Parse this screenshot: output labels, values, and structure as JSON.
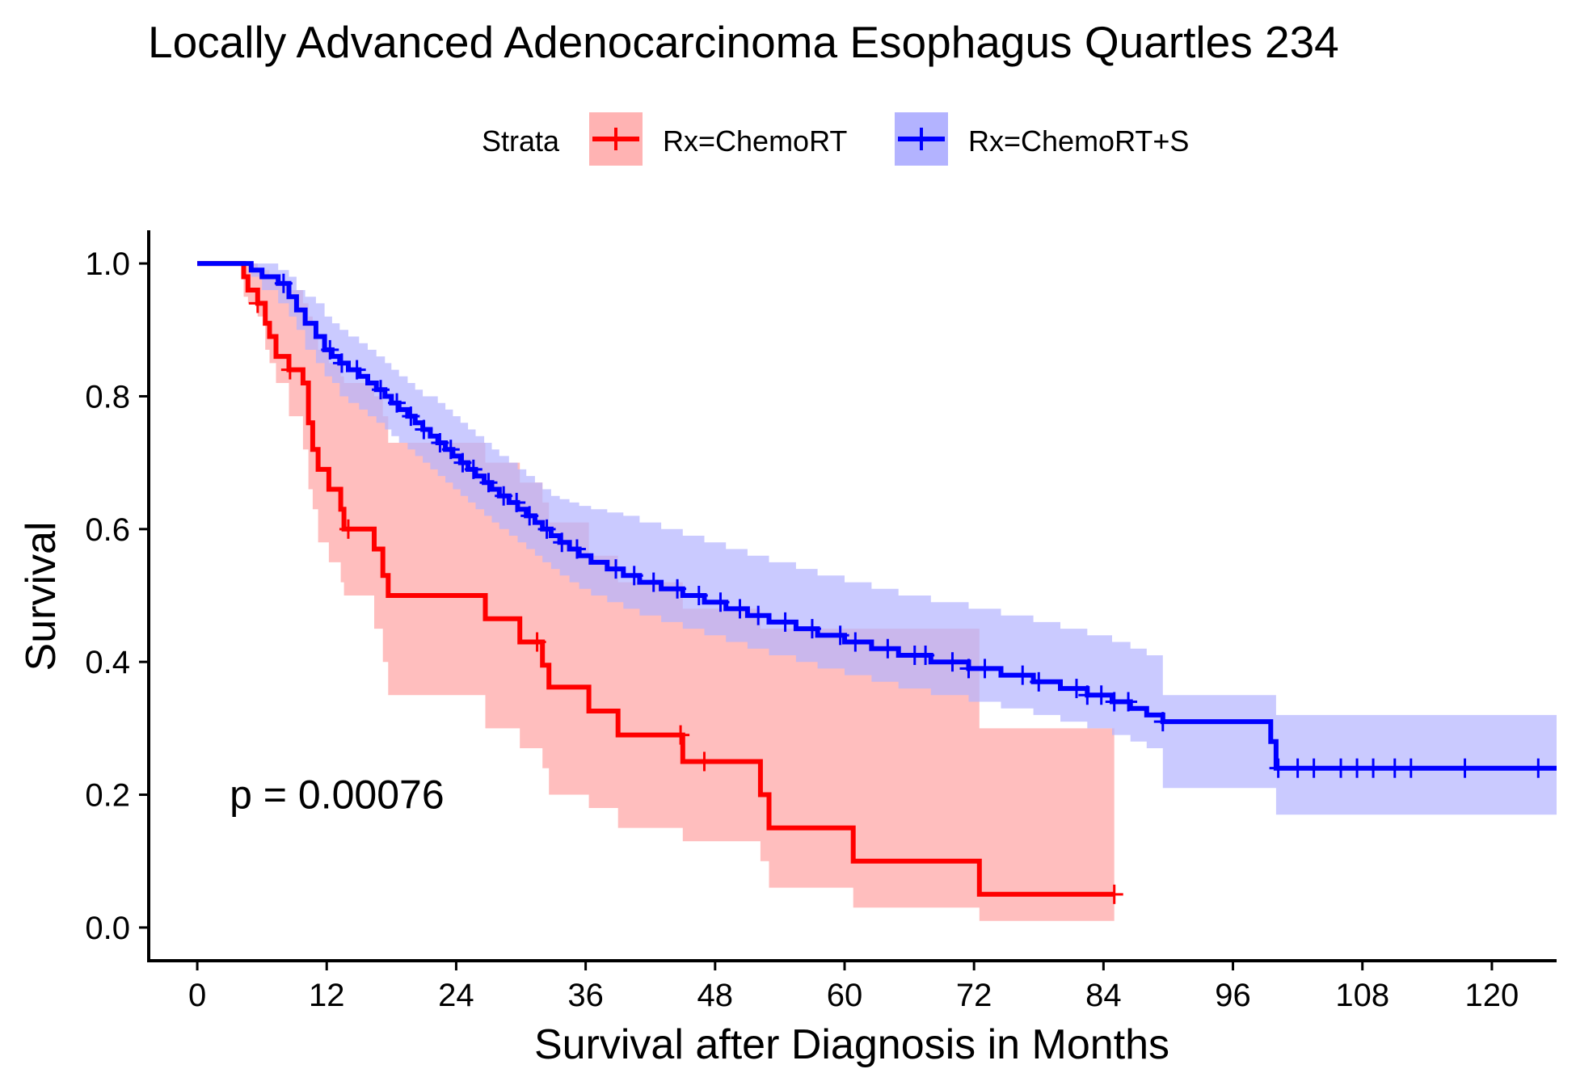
{
  "chart_data": {
    "type": "line",
    "chart_kind": "kaplan-meier survival curve",
    "title": "Locally Advanced Adenocarcinoma Esophagus Quartles 234",
    "xlabel": "Survival after Diagnosis in Months",
    "ylabel": "Survival",
    "xlim": [
      -4.5,
      126
    ],
    "ylim": [
      -0.05,
      1.05
    ],
    "x_ticks": [
      "0",
      "12",
      "24",
      "36",
      "48",
      "60",
      "72",
      "84",
      "96",
      "108",
      "120"
    ],
    "y_ticks": [
      "0.0",
      "0.2",
      "0.4",
      "0.6",
      "0.8",
      "1.0"
    ],
    "grid": false,
    "legend": {
      "title": "Strata",
      "placement": "top",
      "entries": [
        "Rx=ChemoRT",
        "Rx=ChemoRT+S"
      ]
    },
    "annotation": {
      "text": "p = 0.00076",
      "x": 3,
      "y": 0.2
    },
    "series": [
      {
        "name": "Rx=ChemoRT",
        "color": "#ff0000",
        "band_color": "#ffb3b3",
        "steps": [
          [
            0,
            1.0
          ],
          [
            4.3,
            0.98
          ],
          [
            4.7,
            0.96
          ],
          [
            5.6,
            0.94
          ],
          [
            6.3,
            0.91
          ],
          [
            6.7,
            0.89
          ],
          [
            7.3,
            0.86
          ],
          [
            8.5,
            0.84
          ],
          [
            9.8,
            0.82
          ],
          [
            10.3,
            0.76
          ],
          [
            10.7,
            0.72
          ],
          [
            11.2,
            0.69
          ],
          [
            12.2,
            0.66
          ],
          [
            13.3,
            0.63
          ],
          [
            13.6,
            0.6
          ],
          [
            16.4,
            0.57
          ],
          [
            17.2,
            0.53
          ],
          [
            17.7,
            0.5
          ],
          [
            26.7,
            0.465
          ],
          [
            29.9,
            0.43
          ],
          [
            32.0,
            0.395
          ],
          [
            32.6,
            0.362
          ],
          [
            36.3,
            0.326
          ],
          [
            39.0,
            0.29
          ],
          [
            45.0,
            0.25
          ],
          [
            52.2,
            0.2
          ],
          [
            53.0,
            0.15
          ],
          [
            60.8,
            0.1
          ],
          [
            72.5,
            0.05
          ],
          [
            85.0,
            0.05
          ]
        ],
        "censor_times": [
          5.6,
          8.6,
          14.0,
          31.5,
          44.8,
          47.0,
          85.0
        ],
        "ci": [
          [
            0,
            1.0,
            1.0
          ],
          [
            4.3,
            1.0,
            0.95
          ],
          [
            4.7,
            1.0,
            0.94
          ],
          [
            5.6,
            0.99,
            0.92
          ],
          [
            6.3,
            0.99,
            0.87
          ],
          [
            6.7,
            0.98,
            0.85
          ],
          [
            7.3,
            0.97,
            0.82
          ],
          [
            8.5,
            0.96,
            0.77
          ],
          [
            9.8,
            0.94,
            0.72
          ],
          [
            10.3,
            0.92,
            0.66
          ],
          [
            10.7,
            0.89,
            0.63
          ],
          [
            11.2,
            0.87,
            0.58
          ],
          [
            12.2,
            0.85,
            0.55
          ],
          [
            13.3,
            0.83,
            0.52
          ],
          [
            13.6,
            0.82,
            0.5
          ],
          [
            16.4,
            0.8,
            0.45
          ],
          [
            17.2,
            0.77,
            0.4
          ],
          [
            17.7,
            0.73,
            0.35
          ],
          [
            26.7,
            0.7,
            0.3
          ],
          [
            29.9,
            0.67,
            0.27
          ],
          [
            32.0,
            0.64,
            0.24
          ],
          [
            32.6,
            0.61,
            0.2
          ],
          [
            36.3,
            0.56,
            0.18
          ],
          [
            39.0,
            0.52,
            0.15
          ],
          [
            45.0,
            0.48,
            0.13
          ],
          [
            52.2,
            0.45,
            0.1
          ],
          [
            53.0,
            0.45,
            0.06
          ],
          [
            60.8,
            0.45,
            0.03
          ],
          [
            72.5,
            0.3,
            0.01
          ],
          [
            85.0,
            0.3,
            0.01
          ]
        ]
      },
      {
        "name": "Rx=ChemoRT+S",
        "color": "#0000ff",
        "band_color": "#b3b3ff",
        "steps": [
          [
            0,
            1.0
          ],
          [
            5.0,
            0.99
          ],
          [
            6.0,
            0.98
          ],
          [
            7.5,
            0.97
          ],
          [
            8.5,
            0.95
          ],
          [
            9.2,
            0.93
          ],
          [
            10.0,
            0.91
          ],
          [
            11.0,
            0.89
          ],
          [
            11.8,
            0.87
          ],
          [
            12.5,
            0.86
          ],
          [
            13.2,
            0.85
          ],
          [
            14.0,
            0.84
          ],
          [
            15.0,
            0.83
          ],
          [
            15.8,
            0.82
          ],
          [
            16.6,
            0.81
          ],
          [
            17.4,
            0.8
          ],
          [
            18.0,
            0.79
          ],
          [
            18.7,
            0.78
          ],
          [
            19.5,
            0.77
          ],
          [
            20.2,
            0.76
          ],
          [
            20.9,
            0.75
          ],
          [
            21.6,
            0.74
          ],
          [
            22.3,
            0.73
          ],
          [
            23.0,
            0.72
          ],
          [
            23.7,
            0.71
          ],
          [
            24.4,
            0.7
          ],
          [
            25.1,
            0.69
          ],
          [
            25.8,
            0.68
          ],
          [
            26.6,
            0.67
          ],
          [
            27.3,
            0.66
          ],
          [
            28.0,
            0.65
          ],
          [
            28.9,
            0.64
          ],
          [
            29.7,
            0.63
          ],
          [
            30.5,
            0.62
          ],
          [
            31.3,
            0.61
          ],
          [
            32.0,
            0.6
          ],
          [
            32.8,
            0.59
          ],
          [
            33.6,
            0.58
          ],
          [
            34.5,
            0.57
          ],
          [
            35.4,
            0.56
          ],
          [
            36.5,
            0.55
          ],
          [
            38.0,
            0.54
          ],
          [
            39.5,
            0.53
          ],
          [
            41.0,
            0.52
          ],
          [
            43.0,
            0.51
          ],
          [
            45.0,
            0.5
          ],
          [
            47.0,
            0.49
          ],
          [
            49.0,
            0.48
          ],
          [
            51.0,
            0.47
          ],
          [
            53.0,
            0.46
          ],
          [
            55.5,
            0.45
          ],
          [
            57.5,
            0.44
          ],
          [
            60.0,
            0.43
          ],
          [
            62.5,
            0.42
          ],
          [
            65.0,
            0.41
          ],
          [
            68.0,
            0.4
          ],
          [
            71.5,
            0.39
          ],
          [
            74.5,
            0.38
          ],
          [
            77.5,
            0.37
          ],
          [
            80.0,
            0.36
          ],
          [
            82.5,
            0.35
          ],
          [
            84.8,
            0.34
          ],
          [
            86.5,
            0.33
          ],
          [
            88.0,
            0.32
          ],
          [
            89.5,
            0.31
          ],
          [
            99.5,
            0.28
          ],
          [
            100.0,
            0.24
          ],
          [
            126.0,
            0.24
          ]
        ],
        "censor_times": [
          8.0,
          12.3,
          13.4,
          14.8,
          17.0,
          18.5,
          19.8,
          21.0,
          22.5,
          23.5,
          24.6,
          25.6,
          27.0,
          28.4,
          29.6,
          30.8,
          32.4,
          33.8,
          35.2,
          38.8,
          40.5,
          42.3,
          44.5,
          46.5,
          48.5,
          50.3,
          52.0,
          54.5,
          57.0,
          59.6,
          61.0,
          64.0,
          66.5,
          67.5,
          70.0,
          71.5,
          73.0,
          76.5,
          78.0,
          81.5,
          82.5,
          83.8,
          85.0,
          86.3,
          89.5,
          100.2,
          102.0,
          103.5,
          106.0,
          107.5,
          109.0,
          111.0,
          112.5,
          117.5,
          124.3
        ],
        "ci": [
          [
            0,
            1.0,
            1.0
          ],
          [
            5.0,
            1.0,
            0.98
          ],
          [
            6.0,
            1.0,
            0.96
          ],
          [
            7.5,
            0.99,
            0.94
          ],
          [
            8.5,
            0.98,
            0.92
          ],
          [
            9.2,
            0.96,
            0.9
          ],
          [
            10.0,
            0.95,
            0.87
          ],
          [
            11.0,
            0.94,
            0.85
          ],
          [
            11.8,
            0.92,
            0.83
          ],
          [
            12.5,
            0.91,
            0.82
          ],
          [
            13.2,
            0.9,
            0.8
          ],
          [
            14.0,
            0.89,
            0.79
          ],
          [
            15.0,
            0.88,
            0.78
          ],
          [
            15.8,
            0.87,
            0.77
          ],
          [
            16.6,
            0.86,
            0.76
          ],
          [
            17.4,
            0.85,
            0.75
          ],
          [
            18.0,
            0.84,
            0.74
          ],
          [
            18.7,
            0.83,
            0.73
          ],
          [
            19.5,
            0.82,
            0.72
          ],
          [
            20.2,
            0.81,
            0.71
          ],
          [
            20.9,
            0.8,
            0.7
          ],
          [
            21.6,
            0.8,
            0.69
          ],
          [
            22.3,
            0.79,
            0.68
          ],
          [
            23.0,
            0.78,
            0.67
          ],
          [
            23.7,
            0.77,
            0.66
          ],
          [
            24.4,
            0.76,
            0.65
          ],
          [
            25.1,
            0.75,
            0.64
          ],
          [
            25.8,
            0.74,
            0.63
          ],
          [
            26.6,
            0.73,
            0.62
          ],
          [
            27.3,
            0.72,
            0.61
          ],
          [
            28.0,
            0.71,
            0.6
          ],
          [
            28.9,
            0.7,
            0.59
          ],
          [
            29.7,
            0.69,
            0.58
          ],
          [
            30.5,
            0.68,
            0.57
          ],
          [
            31.3,
            0.67,
            0.56
          ],
          [
            32.0,
            0.66,
            0.55
          ],
          [
            32.8,
            0.65,
            0.54
          ],
          [
            33.6,
            0.645,
            0.53
          ],
          [
            34.5,
            0.64,
            0.52
          ],
          [
            35.4,
            0.635,
            0.51
          ],
          [
            36.5,
            0.63,
            0.5
          ],
          [
            38.0,
            0.625,
            0.49
          ],
          [
            39.5,
            0.62,
            0.48
          ],
          [
            41.0,
            0.61,
            0.47
          ],
          [
            43.0,
            0.6,
            0.46
          ],
          [
            45.0,
            0.59,
            0.45
          ],
          [
            47.0,
            0.58,
            0.44
          ],
          [
            49.0,
            0.57,
            0.43
          ],
          [
            51.0,
            0.56,
            0.42
          ],
          [
            53.0,
            0.55,
            0.41
          ],
          [
            55.5,
            0.54,
            0.4
          ],
          [
            57.5,
            0.53,
            0.39
          ],
          [
            60.0,
            0.52,
            0.38
          ],
          [
            62.5,
            0.51,
            0.37
          ],
          [
            65.0,
            0.5,
            0.36
          ],
          [
            68.0,
            0.49,
            0.35
          ],
          [
            71.5,
            0.48,
            0.34
          ],
          [
            74.5,
            0.47,
            0.33
          ],
          [
            77.5,
            0.46,
            0.32
          ],
          [
            80.0,
            0.45,
            0.31
          ],
          [
            82.5,
            0.44,
            0.3
          ],
          [
            84.8,
            0.43,
            0.29
          ],
          [
            86.5,
            0.42,
            0.28
          ],
          [
            88.0,
            0.41,
            0.27
          ],
          [
            89.5,
            0.35,
            0.21
          ],
          [
            99.5,
            0.35,
            0.21
          ],
          [
            100.0,
            0.32,
            0.17
          ],
          [
            126.0,
            0.32,
            0.17
          ]
        ]
      }
    ]
  }
}
